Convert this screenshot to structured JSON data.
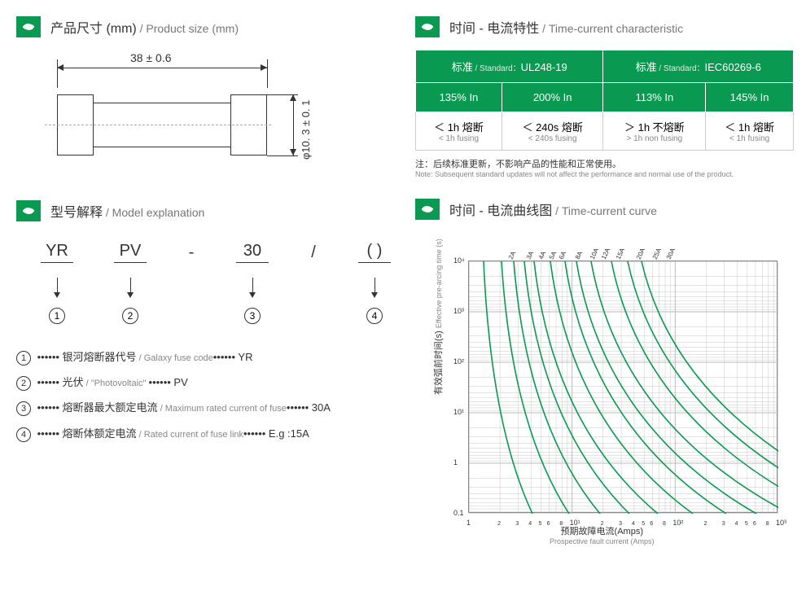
{
  "sections": {
    "product_size": {
      "title_cn": "产品尺寸 (mm)",
      "title_en": " / Product size (mm)"
    },
    "model_explanation": {
      "title_cn": "型号解释",
      "title_en": " / Model explanation"
    },
    "time_current_char": {
      "title_cn": "时间 - 电流特性",
      "title_en": " / Time-current characteristic"
    },
    "time_current_curve": {
      "title_cn": "时间 - 电流曲线图",
      "title_en": " / Time-current curve"
    }
  },
  "dimensions": {
    "length": "38 ± 0.6",
    "diameter": "φ10. 3 ± 0. 1"
  },
  "model": {
    "parts": [
      "YR",
      "PV",
      "-",
      "30",
      "/",
      "( )"
    ],
    "explanations": [
      {
        "num": "1",
        "cn": "银河熔断器代号",
        "en": " / Galaxy fuse code",
        "val": "YR"
      },
      {
        "num": "2",
        "cn": "光伏",
        "en": " / \"Photovoltaic\" ",
        "val": "PV"
      },
      {
        "num": "3",
        "cn": "熔断器最大额定电流",
        "en": " / Maximum rated current of fuse",
        "val": "30A"
      },
      {
        "num": "4",
        "cn": "熔断体额定电流",
        "en": " / Rated current of fuse link",
        "val": "E.g :15A"
      }
    ]
  },
  "tc_table": {
    "header_std_cn": "标准",
    "header_std_en": " / Standard：",
    "std1": "UL248-19",
    "std2": "IEC60269-6",
    "cols": [
      "135% In",
      "200% In",
      "113% In",
      "145% In"
    ],
    "rows": [
      {
        "cn": "＜ 1h 熔断",
        "en": "< 1h fusing"
      },
      {
        "cn": "＜ 240s 熔断",
        "en": "< 240s fusing"
      },
      {
        "cn": "＞ 1h 不熔断",
        "en": "> 1h non fusing"
      },
      {
        "cn": "＜ 1h 熔断",
        "en": "< 1h fusing"
      }
    ],
    "note_cn": "注：后续标准更新，不影响产品的性能和正常使用。",
    "note_en": "Note: Subsequent standard updates will not affect the performance and normal use of the product."
  },
  "curve": {
    "y_label_cn": "有效弧前时间(s)",
    "y_label_en": "Effective pre-arcing time (s)",
    "x_label_cn": "预期故障电流(Amps)",
    "x_label_en": "Prospective fault current (Amps)",
    "y_ticks": [
      "10⁴",
      "10³",
      "10²",
      "10¹",
      "1",
      "0.1"
    ],
    "x_ticks": [
      "1",
      "10¹",
      "10²",
      "10³"
    ],
    "x_minor": [
      "2",
      "3",
      "4",
      "5",
      "6",
      "8"
    ],
    "series": [
      "2A",
      "3A",
      "4A",
      "5A",
      "6A",
      "8A",
      "10A",
      "12A",
      "15A",
      "20A",
      "25A",
      "30A"
    ],
    "line_color": "#0a9950",
    "grid_color": "#bbb",
    "x_start_offsets": [
      18,
      40,
      55,
      68,
      80,
      100,
      118,
      132,
      150,
      175,
      195,
      212
    ],
    "x_end_spread": 23
  },
  "colors": {
    "brand_green": "#0a9950",
    "text": "#333333",
    "muted": "#888888",
    "border": "#cccccc",
    "bg": "#ffffff"
  }
}
